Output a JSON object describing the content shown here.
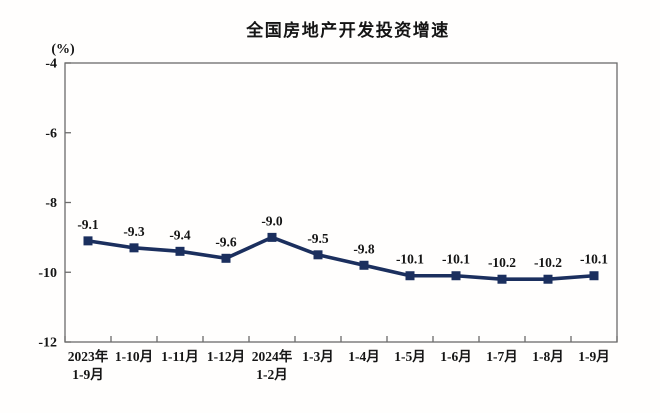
{
  "chart_data": {
    "type": "line",
    "title": "全国房地产开发投资增速",
    "unit_label": "(%)",
    "categories": [
      [
        "2023年",
        "1-9月"
      ],
      [
        "1-10月"
      ],
      [
        "1-11月"
      ],
      [
        "1-12月"
      ],
      [
        "2024年",
        "1-2月"
      ],
      [
        "1-3月"
      ],
      [
        "1-4月"
      ],
      [
        "1-5月"
      ],
      [
        "1-6月"
      ],
      [
        "1-7月"
      ],
      [
        "1-8月"
      ],
      [
        "1-9月"
      ]
    ],
    "series": [
      {
        "name": "全国房地产开发投资增速",
        "values": [
          -9.1,
          -9.3,
          -9.4,
          -9.6,
          -9.0,
          -9.5,
          -9.8,
          -10.1,
          -10.1,
          -10.2,
          -10.2,
          -10.1
        ],
        "data_labels": [
          "-9.1",
          "-9.3",
          "-9.4",
          "-9.6",
          "-9.0",
          "-9.5",
          "-9.8",
          "-10.1",
          "-10.1",
          "-10.2",
          "-10.2",
          "-10.1"
        ]
      }
    ],
    "ylim": [
      -12,
      -4
    ],
    "y_ticks": [
      -4,
      -6,
      -8,
      -10,
      -12
    ],
    "y_tick_labels": [
      "-4",
      "-6",
      "-8",
      "-10",
      "-12"
    ],
    "xlabel": "",
    "ylabel": "(%)",
    "grid": false,
    "legend_position": "none",
    "colors": {
      "line": "#1b2f5e",
      "marker": "#1b2f5e",
      "axis": "#6b6b6b",
      "text": "#151515",
      "background": "#fffefd"
    },
    "marker_shape": "square"
  }
}
